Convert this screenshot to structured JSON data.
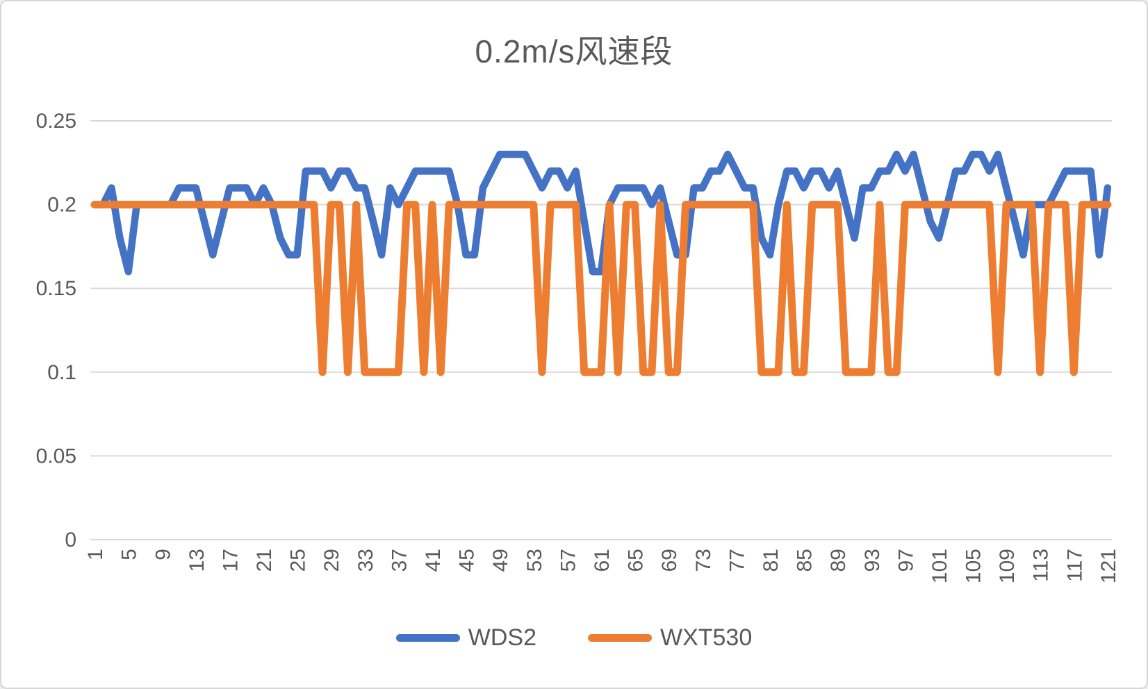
{
  "chart_data": {
    "type": "line",
    "title": "0.2m/s风速段",
    "xlabel": "",
    "ylabel": "",
    "ylim": [
      0,
      0.25
    ],
    "grid": "horizontal",
    "legend_position": "bottom",
    "y_ticks": [
      "0",
      "0.05",
      "0.1",
      "0.15",
      "0.2",
      "0.25"
    ],
    "x_tick_step": 4,
    "x_tick_labels": [
      "1",
      "5",
      "9",
      "13",
      "17",
      "21",
      "25",
      "29",
      "33",
      "37",
      "41",
      "45",
      "49",
      "53",
      "57",
      "61",
      "65",
      "69",
      "73",
      "77",
      "81",
      "85",
      "89",
      "93",
      "97",
      "101",
      "105",
      "109",
      "113",
      "117",
      "121"
    ],
    "categories": [
      1,
      2,
      3,
      4,
      5,
      6,
      7,
      8,
      9,
      10,
      11,
      12,
      13,
      14,
      15,
      16,
      17,
      18,
      19,
      20,
      21,
      22,
      23,
      24,
      25,
      26,
      27,
      28,
      29,
      30,
      31,
      32,
      33,
      34,
      35,
      36,
      37,
      38,
      39,
      40,
      41,
      42,
      43,
      44,
      45,
      46,
      47,
      48,
      49,
      50,
      51,
      52,
      53,
      54,
      55,
      56,
      57,
      58,
      59,
      60,
      61,
      62,
      63,
      64,
      65,
      66,
      67,
      68,
      69,
      70,
      71,
      72,
      73,
      74,
      75,
      76,
      77,
      78,
      79,
      80,
      81,
      82,
      83,
      84,
      85,
      86,
      87,
      88,
      89,
      90,
      91,
      92,
      93,
      94,
      95,
      96,
      97,
      98,
      99,
      100,
      101,
      102,
      103,
      104,
      105,
      106,
      107,
      108,
      109,
      110,
      111,
      112,
      113,
      114,
      115,
      116,
      117,
      118,
      119,
      120,
      121
    ],
    "series": [
      {
        "name": "WDS2",
        "color": "#4472C4",
        "values": [
          0.2,
          0.2,
          0.21,
          0.18,
          0.16,
          0.2,
          0.2,
          0.2,
          0.2,
          0.2,
          0.21,
          0.21,
          0.21,
          0.19,
          0.17,
          0.19,
          0.21,
          0.21,
          0.21,
          0.2,
          0.21,
          0.2,
          0.18,
          0.17,
          0.17,
          0.22,
          0.22,
          0.22,
          0.21,
          0.22,
          0.22,
          0.21,
          0.21,
          0.19,
          0.17,
          0.21,
          0.2,
          0.21,
          0.22,
          0.22,
          0.22,
          0.22,
          0.22,
          0.2,
          0.17,
          0.17,
          0.21,
          0.22,
          0.23,
          0.23,
          0.23,
          0.23,
          0.22,
          0.21,
          0.22,
          0.22,
          0.21,
          0.22,
          0.19,
          0.16,
          0.16,
          0.2,
          0.21,
          0.21,
          0.21,
          0.21,
          0.2,
          0.21,
          0.19,
          0.17,
          0.17,
          0.21,
          0.21,
          0.22,
          0.22,
          0.23,
          0.22,
          0.21,
          0.21,
          0.18,
          0.17,
          0.2,
          0.22,
          0.22,
          0.21,
          0.22,
          0.22,
          0.21,
          0.22,
          0.2,
          0.18,
          0.21,
          0.21,
          0.22,
          0.22,
          0.23,
          0.22,
          0.23,
          0.21,
          0.19,
          0.18,
          0.2,
          0.22,
          0.22,
          0.23,
          0.23,
          0.22,
          0.23,
          0.21,
          0.19,
          0.17,
          0.2,
          0.2,
          0.2,
          0.21,
          0.22,
          0.22,
          0.22,
          0.22,
          0.17,
          0.21
        ]
      },
      {
        "name": "WXT530",
        "color": "#ED7D31",
        "values": [
          0.2,
          0.2,
          0.2,
          0.2,
          0.2,
          0.2,
          0.2,
          0.2,
          0.2,
          0.2,
          0.2,
          0.2,
          0.2,
          0.2,
          0.2,
          0.2,
          0.2,
          0.2,
          0.2,
          0.2,
          0.2,
          0.2,
          0.2,
          0.2,
          0.2,
          0.2,
          0.2,
          0.1,
          0.2,
          0.2,
          0.1,
          0.2,
          0.1,
          0.1,
          0.1,
          0.1,
          0.1,
          0.2,
          0.2,
          0.1,
          0.2,
          0.1,
          0.2,
          0.2,
          0.2,
          0.2,
          0.2,
          0.2,
          0.2,
          0.2,
          0.2,
          0.2,
          0.2,
          0.1,
          0.2,
          0.2,
          0.2,
          0.2,
          0.1,
          0.1,
          0.1,
          0.2,
          0.1,
          0.2,
          0.2,
          0.1,
          0.1,
          0.2,
          0.1,
          0.1,
          0.2,
          0.2,
          0.2,
          0.2,
          0.2,
          0.2,
          0.2,
          0.2,
          0.2,
          0.1,
          0.1,
          0.1,
          0.2,
          0.1,
          0.1,
          0.2,
          0.2,
          0.2,
          0.2,
          0.1,
          0.1,
          0.1,
          0.1,
          0.2,
          0.1,
          0.1,
          0.2,
          0.2,
          0.2,
          0.2,
          0.2,
          0.2,
          0.2,
          0.2,
          0.2,
          0.2,
          0.2,
          0.1,
          0.2,
          0.2,
          0.2,
          0.2,
          0.1,
          0.2,
          0.2,
          0.2,
          0.1,
          0.2,
          0.2,
          0.2,
          0.2
        ]
      }
    ]
  },
  "styles": {
    "gridline_color": "#d9d9d9",
    "text_color": "#595959",
    "background": "#ffffff",
    "blue_stroke_width": 10.5,
    "orange_stroke_width": 11
  }
}
